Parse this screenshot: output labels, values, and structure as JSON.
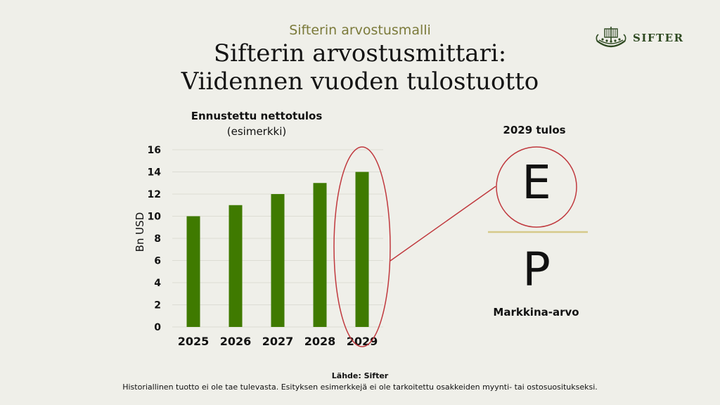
{
  "header": {
    "subtitle": "Sifterin arvostusmalli",
    "title_line1": "Sifterin arvostusmittari:",
    "title_line2": "Viidennen vuoden tulostuotto"
  },
  "logo": {
    "text": "SIFTER",
    "icon": "viking-ship-icon"
  },
  "chart_data": {
    "type": "bar",
    "title": "Ennustettu nettotulos",
    "subtitle": "(esimerkki)",
    "ylabel": "Bn USD",
    "xlabel": "",
    "categories": [
      "2025",
      "2026",
      "2027",
      "2028",
      "2029"
    ],
    "values": [
      10,
      11,
      12,
      13,
      14
    ],
    "ylim": [
      0,
      16
    ],
    "yticks": [
      0,
      2,
      4,
      6,
      8,
      10,
      12,
      14,
      16
    ],
    "grid": true,
    "bar_color": "#3f7a00",
    "highlight_category": "2029",
    "highlight_color": "#c0393e"
  },
  "formula": {
    "label_top": "2029 tulos",
    "numerator": "E",
    "denominator": "P",
    "label_bottom": "Markkina-arvo",
    "line_color": "#d6c98a",
    "circle_color": "#c0393e"
  },
  "footer": {
    "source": "Lähde: Sifter",
    "disclaimer": "Historiallinen tuotto ei ole tae tulevasta. Esityksen esimerkkejä ei ole tarkoitettu osakkeiden myynti- tai ostosuositukseksi."
  }
}
